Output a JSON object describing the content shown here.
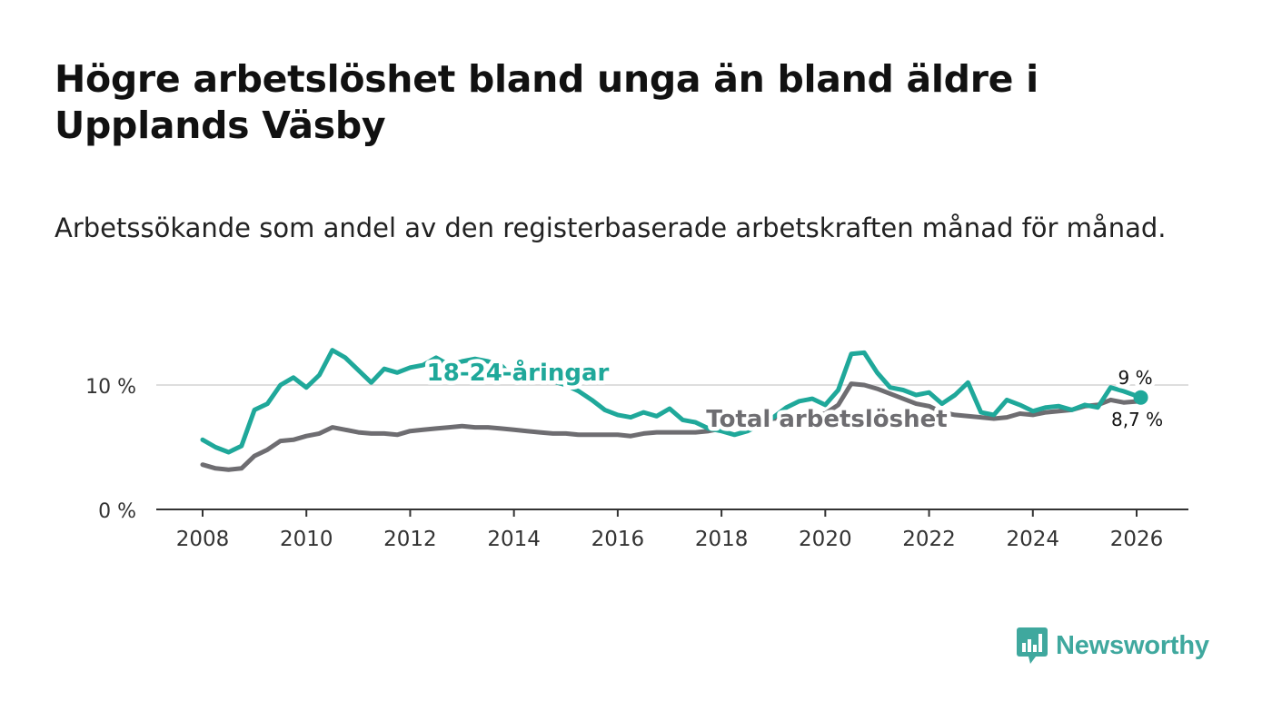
{
  "title": "Högre arbetslöshet bland unga än bland äldre i Upplands Väsby",
  "subtitle": "Arbetssökande som andel av den registerbaserade arbetskraften månad för månad.",
  "brand": {
    "name": "Newsworthy",
    "color": "#3fa89e",
    "icon": "bar-chart-speech-bubble-icon"
  },
  "chart_data": {
    "type": "line",
    "x_ticks": [
      "2008",
      "2010",
      "2012",
      "2014",
      "2016",
      "2018",
      "2020",
      "2022",
      "2024",
      "2026"
    ],
    "y_ticks": [
      "0 %",
      "10 %"
    ],
    "ylim": [
      0,
      14
    ],
    "xlim": [
      2007.2,
      2026.9
    ],
    "grid": true,
    "series": [
      {
        "name": "18-24-åringar",
        "label": "18-24-åringar",
        "color": "#1fa89a",
        "last_label": "9 %",
        "x": [
          2008.0,
          2008.25,
          2008.5,
          2008.75,
          2009.0,
          2009.25,
          2009.5,
          2009.75,
          2010.0,
          2010.25,
          2010.5,
          2010.75,
          2011.0,
          2011.25,
          2011.5,
          2011.75,
          2012.0,
          2012.25,
          2012.5,
          2012.75,
          2013.0,
          2013.25,
          2013.5,
          2013.75,
          2014.0,
          2014.25,
          2014.5,
          2014.75,
          2015.0,
          2015.25,
          2015.5,
          2015.75,
          2016.0,
          2016.25,
          2016.5,
          2016.75,
          2017.0,
          2017.25,
          2017.5,
          2017.75,
          2018.0,
          2018.25,
          2018.5,
          2018.75,
          2019.0,
          2019.25,
          2019.5,
          2019.75,
          2020.0,
          2020.25,
          2020.5,
          2020.75,
          2021.0,
          2021.25,
          2021.5,
          2021.75,
          2022.0,
          2022.25,
          2022.5,
          2022.75,
          2023.0,
          2023.25,
          2023.5,
          2023.75,
          2024.0,
          2024.25,
          2024.5,
          2024.75,
          2025.0,
          2025.25,
          2025.5,
          2025.75,
          2026.08
        ],
        "values": [
          5.6,
          5.0,
          4.6,
          5.1,
          8.0,
          8.5,
          10.0,
          10.6,
          9.8,
          10.8,
          12.8,
          12.2,
          11.2,
          10.2,
          11.3,
          11.0,
          11.4,
          11.6,
          12.2,
          11.6,
          11.9,
          12.1,
          11.9,
          11.6,
          10.5,
          10.9,
          10.8,
          10.3,
          10.0,
          9.5,
          8.8,
          8.0,
          7.6,
          7.4,
          7.8,
          7.5,
          8.1,
          7.2,
          7.0,
          6.5,
          6.3,
          6.0,
          6.3,
          6.8,
          7.4,
          8.2,
          8.7,
          8.9,
          8.4,
          9.6,
          12.5,
          12.6,
          11.0,
          9.8,
          9.6,
          9.2,
          9.4,
          8.5,
          9.2,
          10.2,
          7.8,
          7.6,
          8.8,
          8.4,
          7.9,
          8.2,
          8.3,
          8.0,
          8.4,
          8.2,
          9.8,
          9.5,
          9.0
        ]
      },
      {
        "name": "Total arbetslöshet",
        "label": "Total arbetslöshet",
        "color": "#6e6d71",
        "last_label": "8,7 %",
        "x": [
          2008.0,
          2008.25,
          2008.5,
          2008.75,
          2009.0,
          2009.25,
          2009.5,
          2009.75,
          2010.0,
          2010.25,
          2010.5,
          2010.75,
          2011.0,
          2011.25,
          2011.5,
          2011.75,
          2012.0,
          2012.25,
          2012.5,
          2012.75,
          2013.0,
          2013.25,
          2013.5,
          2013.75,
          2014.0,
          2014.25,
          2014.5,
          2014.75,
          2015.0,
          2015.25,
          2015.5,
          2015.75,
          2016.0,
          2016.25,
          2016.5,
          2016.75,
          2017.0,
          2017.25,
          2017.5,
          2017.75,
          2018.0,
          2018.25,
          2018.5,
          2018.75,
          2019.0,
          2019.25,
          2019.5,
          2019.75,
          2020.0,
          2020.25,
          2020.5,
          2020.75,
          2021.0,
          2021.25,
          2021.5,
          2021.75,
          2022.0,
          2022.25,
          2022.5,
          2022.75,
          2023.0,
          2023.25,
          2023.5,
          2023.75,
          2024.0,
          2024.25,
          2024.5,
          2024.75,
          2025.0,
          2025.25,
          2025.5,
          2025.75,
          2026.08
        ],
        "values": [
          3.6,
          3.3,
          3.2,
          3.3,
          4.3,
          4.8,
          5.5,
          5.6,
          5.9,
          6.1,
          6.6,
          6.4,
          6.2,
          6.1,
          6.1,
          6.0,
          6.3,
          6.4,
          6.5,
          6.6,
          6.7,
          6.6,
          6.6,
          6.5,
          6.4,
          6.3,
          6.2,
          6.1,
          6.1,
          6.0,
          6.0,
          6.0,
          6.0,
          5.9,
          6.1,
          6.2,
          6.2,
          6.2,
          6.2,
          6.3,
          6.5,
          6.7,
          6.9,
          7.1,
          7.3,
          7.4,
          7.5,
          7.6,
          7.7,
          8.4,
          10.1,
          10.0,
          9.7,
          9.3,
          8.9,
          8.5,
          8.3,
          7.8,
          7.6,
          7.5,
          7.4,
          7.3,
          7.4,
          7.7,
          7.6,
          7.8,
          7.9,
          8.0,
          8.3,
          8.4,
          8.8,
          8.6,
          8.7
        ]
      }
    ]
  }
}
